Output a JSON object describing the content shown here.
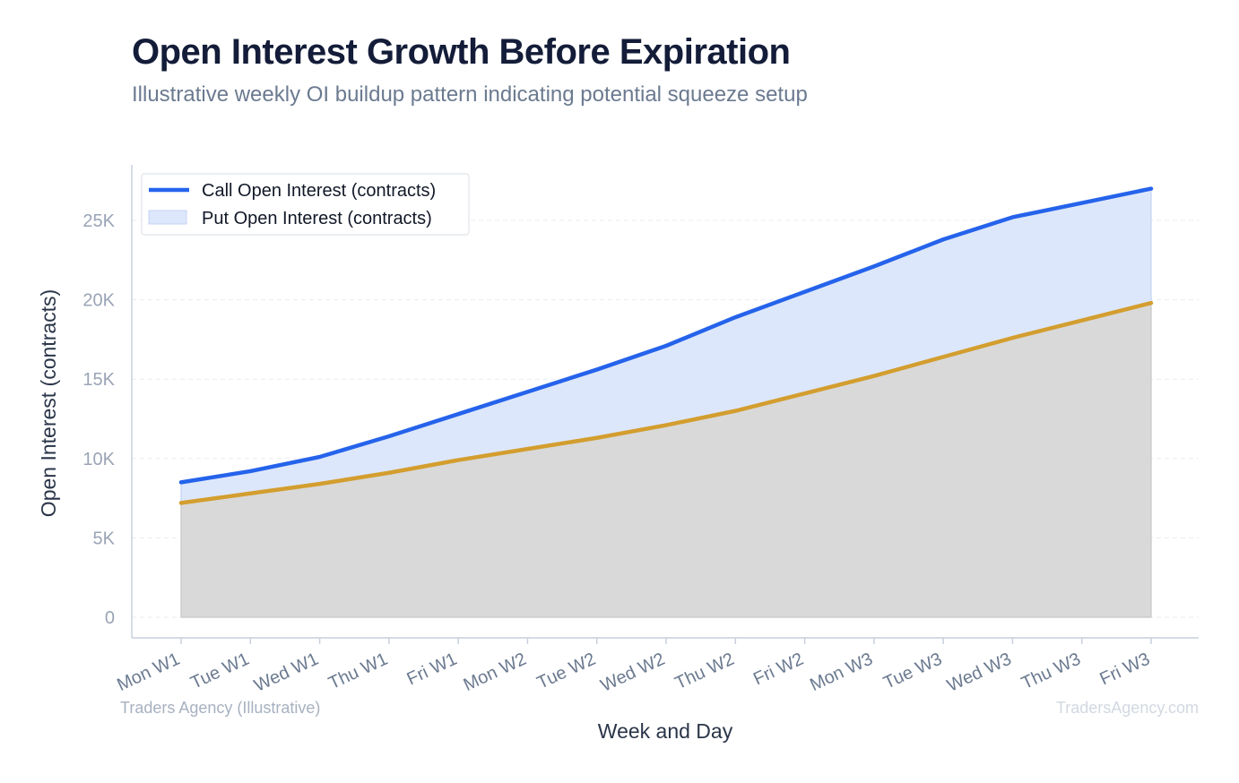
{
  "header": {
    "title": "Open Interest Growth Before Expiration",
    "subtitle": "Illustrative weekly OI buildup pattern indicating potential squeeze setup"
  },
  "footer": {
    "source": "Traders Agency (Illustrative)",
    "watermark": "TradersAgency.com"
  },
  "colors": {
    "call_line": "#2563eb",
    "call_fill": "#dde7fb",
    "put_line": "#d39e2f",
    "put_fill": "#d9d9d9",
    "axis": "#c9d1dd",
    "grid": "#e8ebef"
  },
  "chart_data": {
    "type": "area",
    "xlabel": "Week and Day",
    "ylabel": "Open Interest (contracts)",
    "ylim": [
      -1300,
      28500
    ],
    "yticks": [
      0,
      5000,
      10000,
      15000,
      20000,
      25000
    ],
    "ytick_labels": [
      "0",
      "5K",
      "10K",
      "15K",
      "20K",
      "25K"
    ],
    "categories": [
      "Mon W1",
      "Tue W1",
      "Wed W1",
      "Thu W1",
      "Fri W1",
      "Mon W2",
      "Tue W2",
      "Wed W2",
      "Thu W2",
      "Fri W2",
      "Mon W3",
      "Tue W3",
      "Wed W3",
      "Thu W3",
      "Fri W3"
    ],
    "series": [
      {
        "name": "Call Open Interest (contracts)",
        "values": [
          8500,
          9200,
          10100,
          11400,
          12800,
          14200,
          15600,
          17100,
          18900,
          20500,
          22100,
          23800,
          25200,
          26100,
          27000
        ]
      },
      {
        "name": "Put Open Interest (contracts)",
        "values": [
          7200,
          7800,
          8400,
          9100,
          9900,
          10600,
          11300,
          12100,
          13000,
          14100,
          15200,
          16400,
          17600,
          18700,
          19800
        ]
      }
    ],
    "grid": true,
    "legend_position": "top-left"
  }
}
